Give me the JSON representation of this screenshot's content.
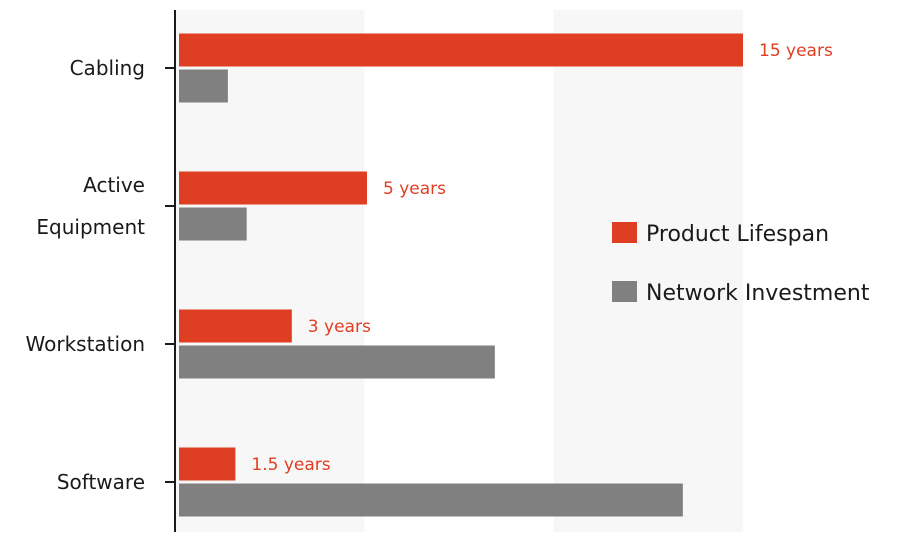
{
  "chart_data": {
    "type": "bar",
    "orientation": "horizontal",
    "categories": [
      [
        "Cabling"
      ],
      [
        "Active",
        "Equipment"
      ],
      [
        "Workstation"
      ],
      [
        "Software"
      ]
    ],
    "series": [
      {
        "name": "Product Lifespan",
        "color": "#e03e22",
        "values": [
          15,
          5,
          3,
          1.5
        ],
        "data_labels": [
          "15 years",
          "5 years",
          "3 years",
          "1.5 years"
        ]
      },
      {
        "name": "Network Investment",
        "color": "#808080",
        "values": [
          1.3,
          1.8,
          8.4,
          13.4
        ]
      }
    ],
    "xlim": [
      0,
      15
    ],
    "background_bands": true,
    "grid": false,
    "legend_position": "right"
  }
}
